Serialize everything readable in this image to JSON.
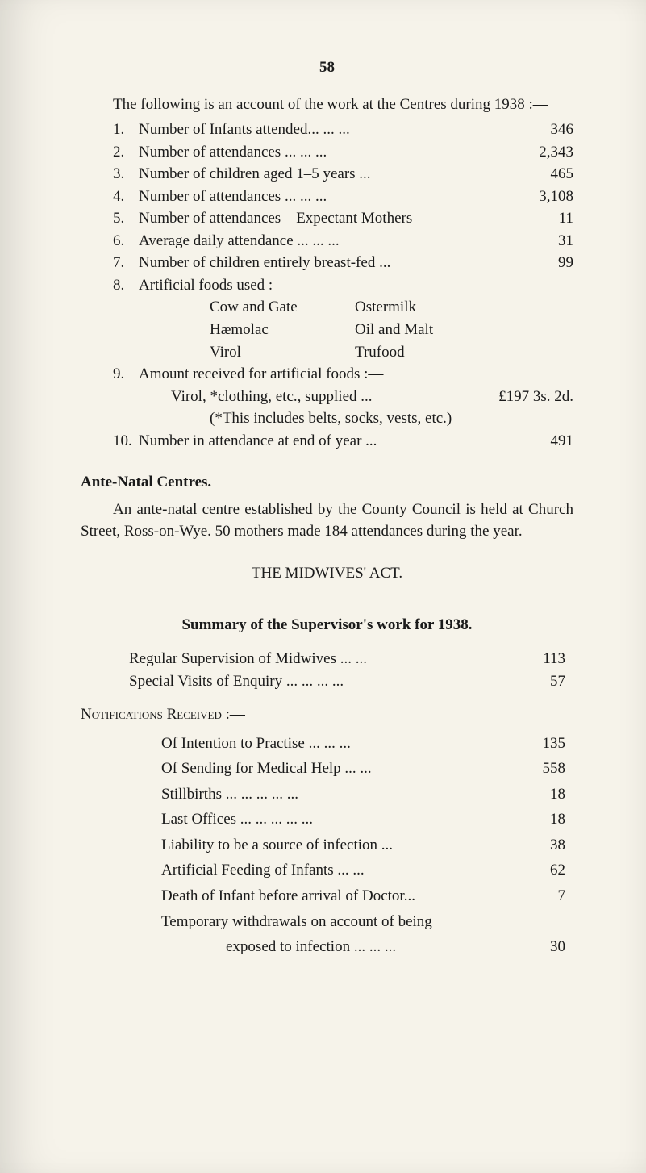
{
  "page_number": "58",
  "intro": "The following is an account of the work at the Centres during 1938 :—",
  "items": [
    {
      "n": "1.",
      "label": "Number of Infants attended...    ...    ...",
      "val": "346"
    },
    {
      "n": "2.",
      "label": "Number of attendances          ...    ...    ...",
      "val": "2,343"
    },
    {
      "n": "3.",
      "label": "Number of children aged 1–5 years        ...",
      "val": "465"
    },
    {
      "n": "4.",
      "label": "Number of attendances          ...    ...    ...",
      "val": "3,108"
    },
    {
      "n": "5.",
      "label": "Number of attendances—Expectant Mothers",
      "val": "11"
    },
    {
      "n": "6.",
      "label": "Average daily attendance     ...    ...    ...",
      "val": "31"
    },
    {
      "n": "7.",
      "label": "Number of children entirely breast-fed   ...",
      "val": "99"
    }
  ],
  "item8_n": "8.",
  "item8_label": "Artificial foods used :—",
  "item8_rows": [
    {
      "c1": "Cow and Gate",
      "c2": "Ostermilk"
    },
    {
      "c1": "Hæmolac",
      "c2": "Oil and Malt"
    },
    {
      "c1": "Virol",
      "c2": "Trufood"
    }
  ],
  "item9_n": "9.",
  "item9_label": "Amount  received  for  artificial  foods :—",
  "item9_line2_lbl": "Virol, *clothing, etc., supplied       ...",
  "item9_line2_amt": "£197 3s. 2d.",
  "item9_line3": "(*This includes belts, socks, vests, etc.)",
  "item10_n": "10.",
  "item10_label": "Number in attendance at end of year     ...",
  "item10_val": "491",
  "ante_heading": "Ante-Natal Centres.",
  "ante_para": "An ante-natal centre established by the County Council is held at Church Street, Ross-on-Wye.  50 mothers made 184 attendances during the year.",
  "midwives_heading": "THE MIDWIVES' ACT.",
  "summary_heading": "Summary of the Supervisor's work for 1938.",
  "summary_rows": [
    {
      "label": "Regular Supervision of Midwives          ...    ...",
      "val": "113"
    },
    {
      "label": "Special Visits of Enquiry ...    ...    ...    ...",
      "val": "57"
    }
  ],
  "notif_heading": "Notifications Received :—",
  "notif_rows": [
    {
      "label": "Of Intention to Practise     ...    ...    ...",
      "val": "135"
    },
    {
      "label": "Of Sending for Medical Help        ...    ...",
      "val": "558"
    },
    {
      "label": "Stillbirths       ...    ...    ...    ...    ...",
      "val": "18"
    },
    {
      "label": "Last Offices     ...    ...    ...    ...    ...",
      "val": "18"
    },
    {
      "label": "Liability to be a source of infection       ...",
      "val": "38"
    },
    {
      "label": "Artificial Feeding of Infants         ...    ...",
      "val": "62"
    },
    {
      "label": "Death of Infant before arrival of Doctor...",
      "val": "7"
    }
  ],
  "notif_temp": "Temporary withdrawals on account of being",
  "notif_exposed_label": "exposed to infection ...    ...    ...",
  "notif_exposed_val": "30"
}
